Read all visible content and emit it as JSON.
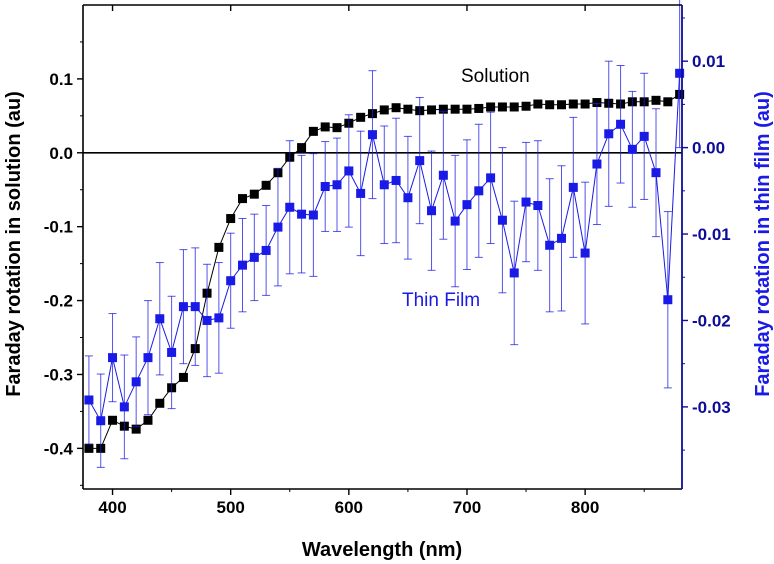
{
  "chart_data": {
    "type": "scatter",
    "xlabel": "Wavelength (nm)",
    "ylabel_left": "Faraday rotation in solution (au)",
    "ylabel_right": "Faraday rotation in thin film (au)",
    "xlim": [
      375,
      882
    ],
    "ylim_left": [
      -0.455,
      0.2
    ],
    "ylim_right": [
      -0.0395,
      0.0165
    ],
    "xticks": [
      400,
      500,
      600,
      700,
      800
    ],
    "yticks_left": [
      -0.4,
      -0.3,
      -0.2,
      -0.1,
      0.0,
      0.1
    ],
    "yticks_left_labels": [
      "-0.4",
      "-0.3",
      "-0.2",
      "-0.1",
      "0.0",
      "0.1"
    ],
    "yticks_right": [
      -0.03,
      -0.02,
      -0.01,
      0.0,
      0.01
    ],
    "yticks_right_labels": [
      "-0.03",
      "-0.02",
      "-0.01",
      "0.00",
      "0.01"
    ],
    "reference_line": 0.0,
    "colors": {
      "solution": "#000000",
      "thin_film": "#1a1ae6",
      "right_axis": "#0d0d99"
    },
    "annotations": [
      {
        "text": "Solution",
        "series": "solution"
      },
      {
        "text": "Thin Film",
        "series": "thin_film"
      }
    ],
    "series": [
      {
        "name": "Solution",
        "axis": "left",
        "x": [
          380,
          390,
          400,
          410,
          420,
          430,
          440,
          450,
          460,
          470,
          480,
          490,
          500,
          510,
          520,
          530,
          540,
          550,
          560,
          570,
          580,
          590,
          600,
          610,
          620,
          630,
          640,
          650,
          660,
          670,
          680,
          690,
          700,
          710,
          720,
          730,
          740,
          750,
          760,
          770,
          780,
          790,
          800,
          810,
          820,
          830,
          840,
          850,
          860,
          870,
          880
        ],
        "y": [
          -0.4,
          -0.4,
          -0.362,
          -0.37,
          -0.374,
          -0.362,
          -0.339,
          -0.318,
          -0.304,
          -0.265,
          -0.19,
          -0.128,
          -0.089,
          -0.062,
          -0.056,
          -0.044,
          -0.027,
          -0.006,
          0.007,
          0.029,
          0.035,
          0.034,
          0.04,
          0.048,
          0.053,
          0.058,
          0.061,
          0.059,
          0.057,
          0.058,
          0.059,
          0.059,
          0.059,
          0.06,
          0.062,
          0.062,
          0.062,
          0.063,
          0.066,
          0.065,
          0.065,
          0.066,
          0.066,
          0.068,
          0.067,
          0.066,
          0.069,
          0.069,
          0.071,
          0.069,
          0.079
        ]
      },
      {
        "name": "Thin Film",
        "axis": "right",
        "x": [
          380,
          390,
          400,
          410,
          420,
          430,
          440,
          450,
          460,
          470,
          480,
          490,
          500,
          510,
          520,
          530,
          540,
          550,
          560,
          570,
          580,
          590,
          600,
          610,
          620,
          630,
          640,
          650,
          660,
          670,
          680,
          690,
          700,
          710,
          720,
          730,
          740,
          750,
          760,
          770,
          780,
          790,
          800,
          810,
          820,
          830,
          840,
          850,
          860,
          870,
          880
        ],
        "y": [
          -0.0292,
          -0.0316,
          -0.0243,
          -0.03,
          -0.0271,
          -0.0243,
          -0.0198,
          -0.0237,
          -0.0184,
          -0.0184,
          -0.02,
          -0.0197,
          -0.0154,
          -0.0136,
          -0.0127,
          -0.0119,
          -0.0092,
          -0.0069,
          -0.0077,
          -0.0078,
          -0.0045,
          -0.0043,
          -0.0027,
          -0.0053,
          0.0015,
          -0.0043,
          -0.0038,
          -0.0058,
          -0.0015,
          -0.0073,
          -0.0032,
          -0.0085,
          -0.0066,
          -0.005,
          -0.0035,
          -0.0084,
          -0.0145,
          -0.0063,
          -0.0067,
          -0.0113,
          -0.0105,
          -0.0046,
          -0.0122,
          -0.0019,
          0.0016,
          0.0027,
          -0.0002,
          0.0013,
          -0.0029,
          -0.0176,
          0.0086
        ],
        "err": [
          0.0051,
          0.0054,
          0.0051,
          0.006,
          0.0052,
          0.0066,
          0.0065,
          0.0065,
          0.0066,
          0.0068,
          0.0065,
          0.0064,
          0.0055,
          0.0054,
          0.005,
          0.0052,
          0.0068,
          0.0077,
          0.0068,
          0.0071,
          0.0052,
          0.0054,
          0.0065,
          0.0072,
          0.0074,
          0.0068,
          0.0072,
          0.0071,
          0.0073,
          0.0069,
          0.0074,
          0.0076,
          0.0075,
          0.0077,
          0.0076,
          0.0084,
          0.0083,
          0.0069,
          0.0075,
          0.0077,
          0.0084,
          0.0081,
          0.0082,
          0.007,
          0.0084,
          0.0068,
          0.0067,
          0.0073,
          0.0074,
          0.0102,
          0.0086
        ]
      }
    ]
  }
}
